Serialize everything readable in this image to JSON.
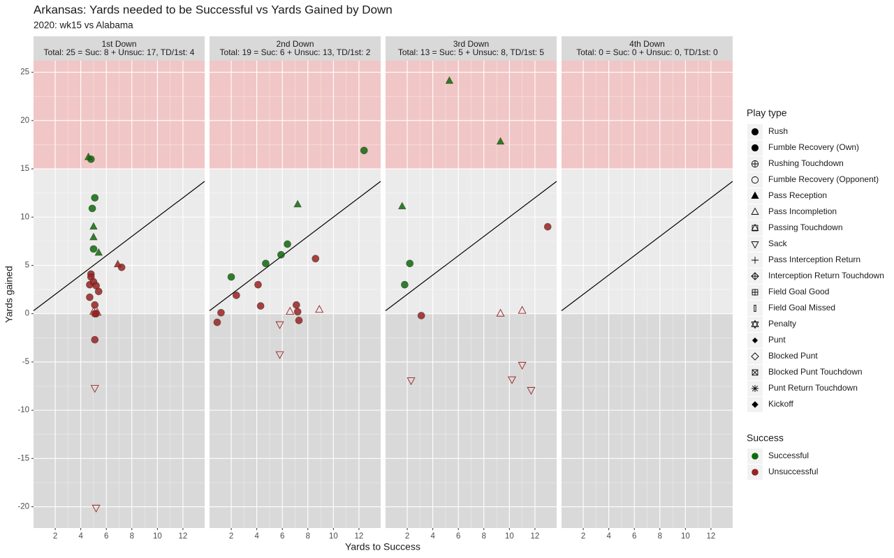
{
  "title": "Arkansas: Yards needed to be Successful vs Yards Gained by Down",
  "subtitle": "2020: wk15 vs Alabama",
  "xlabel": "Yards to Success",
  "ylabel": "Yards gained",
  "bands": [
    {
      "from": 15,
      "to": 26.2,
      "color": "#f1c6c6"
    },
    {
      "from": 0,
      "to": 15,
      "color": "#ebebeb"
    },
    {
      "from": -22.2,
      "to": 0,
      "color": "#d9d9d9"
    }
  ],
  "reference_line": {
    "slope": 1,
    "intercept": 0
  },
  "play_type_legend": {
    "title": "Play type",
    "entries": [
      {
        "name": "Rush",
        "marker": "circle"
      },
      {
        "name": "Fumble Recovery (Own)",
        "marker": "circle"
      },
      {
        "name": "Rushing Touchdown",
        "marker": "circle-plus"
      },
      {
        "name": "Fumble Recovery (Opponent)",
        "marker": "circle-open"
      },
      {
        "name": "Pass Reception",
        "marker": "triangle"
      },
      {
        "name": "Pass Incompletion",
        "marker": "triangle-open"
      },
      {
        "name": "Passing Touchdown",
        "marker": "square-triangle"
      },
      {
        "name": "Sack",
        "marker": "triangle-down-open"
      },
      {
        "name": "Pass Interception Return",
        "marker": "plus"
      },
      {
        "name": "Interception Return Touchdown",
        "marker": "diamond-plus"
      },
      {
        "name": "Field Goal Good",
        "marker": "square-plus"
      },
      {
        "name": "Field Goal Missed",
        "marker": "thin-rect"
      },
      {
        "name": "Penalty",
        "marker": "star"
      },
      {
        "name": "Punt",
        "marker": "diamond-small"
      },
      {
        "name": "Blocked Punt",
        "marker": "diamond-open"
      },
      {
        "name": "Blocked Punt Touchdown",
        "marker": "square-x"
      },
      {
        "name": "Punt Return Touchdown",
        "marker": "asterisk"
      },
      {
        "name": "Kickoff",
        "marker": "diamond"
      }
    ]
  },
  "success_legend": {
    "title": "Success",
    "entries": [
      {
        "name": "Successful",
        "color": "#0b6b0b"
      },
      {
        "name": "Unsuccessful",
        "color": "#982222"
      }
    ]
  },
  "chart_data": [
    {
      "type": "scatter",
      "title": "1st Down",
      "subtitle": "Total: 25 = Suc: 8 + Unsuc: 17, TD/1st: 4",
      "xlim": [
        0.3,
        13.7
      ],
      "ylim": [
        -22.2,
        26.2
      ],
      "xticks": [
        2,
        4,
        6,
        8,
        10,
        12
      ],
      "yticks": [
        -20,
        -15,
        -10,
        -5,
        0,
        5,
        10,
        15,
        20,
        25
      ],
      "series": [
        {
          "name": "Rush",
          "color": "#0b6b0b",
          "x": [
            4.8,
            5.1,
            4.9,
            5.0
          ],
          "y": [
            16.0,
            12.0,
            10.9,
            6.7
          ]
        },
        {
          "name": "Pass Reception",
          "color": "#0b6b0b",
          "x": [
            4.6,
            5.0,
            5.0,
            5.4
          ],
          "y": [
            16.2,
            9.0,
            7.9,
            6.3
          ]
        },
        {
          "name": "Rush",
          "color": "#982222",
          "x": [
            7.2,
            4.8,
            4.8,
            4.7,
            5.0,
            5.2,
            5.4,
            4.7,
            5.1,
            5.2,
            5.1,
            5.1
          ],
          "y": [
            4.8,
            4.1,
            3.8,
            3.0,
            3.3,
            2.9,
            2.3,
            1.7,
            0.9,
            0.0,
            0.0,
            -2.7
          ]
        },
        {
          "name": "Pass Reception",
          "color": "#982222",
          "x": [
            6.9
          ],
          "y": [
            5.1
          ]
        },
        {
          "name": "Pass Incompletion",
          "color": "#982222",
          "x": [
            5.0,
            5.3
          ],
          "y": [
            0.2,
            0.1
          ]
        },
        {
          "name": "Sack",
          "color": "#982222",
          "x": [
            5.1,
            5.2
          ],
          "y": [
            -7.7,
            -20.1
          ]
        }
      ]
    },
    {
      "type": "scatter",
      "title": "2nd Down",
      "subtitle": "Total: 19 = Suc: 6 + Unsuc: 13, TD/1st: 2",
      "xlim": [
        0.3,
        13.7
      ],
      "ylim": [
        -22.2,
        26.2
      ],
      "xticks": [
        2,
        4,
        6,
        8,
        10,
        12
      ],
      "yticks": [
        -20,
        -15,
        -10,
        -5,
        0,
        5,
        10,
        15,
        20,
        25
      ],
      "series": [
        {
          "name": "Rush",
          "color": "#0b6b0b",
          "x": [
            12.4,
            2.0,
            4.7,
            5.9,
            6.4
          ],
          "y": [
            16.9,
            3.8,
            5.2,
            6.1,
            7.2
          ]
        },
        {
          "name": "Pass Reception",
          "color": "#0b6b0b",
          "x": [
            7.2
          ],
          "y": [
            11.3
          ]
        },
        {
          "name": "Rush",
          "color": "#982222",
          "x": [
            0.9,
            1.2,
            2.4,
            4.1,
            4.3,
            8.6,
            7.1,
            7.2,
            7.3
          ],
          "y": [
            -0.9,
            0.1,
            1.9,
            3.0,
            0.8,
            5.7,
            0.9,
            0.2,
            -0.7
          ]
        },
        {
          "name": "Pass Incompletion",
          "color": "#982222",
          "x": [
            6.6,
            8.9
          ],
          "y": [
            0.2,
            0.4
          ]
        },
        {
          "name": "Sack",
          "color": "#982222",
          "x": [
            5.8,
            5.8
          ],
          "y": [
            -1.1,
            -4.2
          ]
        }
      ]
    },
    {
      "type": "scatter",
      "title": "3rd Down",
      "subtitle": "Total: 13 = Suc: 5 + Unsuc: 8, TD/1st: 5",
      "xlim": [
        0.3,
        13.7
      ],
      "ylim": [
        -22.2,
        26.2
      ],
      "xticks": [
        2,
        4,
        6,
        8,
        10,
        12
      ],
      "yticks": [
        -20,
        -15,
        -10,
        -5,
        0,
        5,
        10,
        15,
        20,
        25
      ],
      "series": [
        {
          "name": "Pass Reception",
          "color": "#0b6b0b",
          "x": [
            5.3,
            9.3,
            1.6
          ],
          "y": [
            24.1,
            17.8,
            11.1
          ]
        },
        {
          "name": "Rush",
          "color": "#0b6b0b",
          "x": [
            2.2,
            1.8
          ],
          "y": [
            5.2,
            3.0
          ]
        },
        {
          "name": "Rush",
          "color": "#982222",
          "x": [
            13.0,
            3.1
          ],
          "y": [
            9.0,
            -0.2
          ]
        },
        {
          "name": "Pass Incompletion",
          "color": "#982222",
          "x": [
            9.3,
            11.0
          ],
          "y": [
            0.0,
            0.3
          ]
        },
        {
          "name": "Sack",
          "color": "#982222",
          "x": [
            2.3,
            10.2,
            11.0,
            11.7
          ],
          "y": [
            -6.9,
            -6.8,
            -5.3,
            -7.9
          ]
        }
      ]
    },
    {
      "type": "scatter",
      "title": "4th Down",
      "subtitle": "Total: 0 = Suc: 0 + Unsuc: 0, TD/1st: 0",
      "xlim": [
        0.3,
        13.7
      ],
      "ylim": [
        -22.2,
        26.2
      ],
      "xticks": [
        2,
        4,
        6,
        8,
        10,
        12
      ],
      "yticks": [
        -20,
        -15,
        -10,
        -5,
        0,
        5,
        10,
        15,
        20,
        25
      ],
      "series": []
    }
  ]
}
